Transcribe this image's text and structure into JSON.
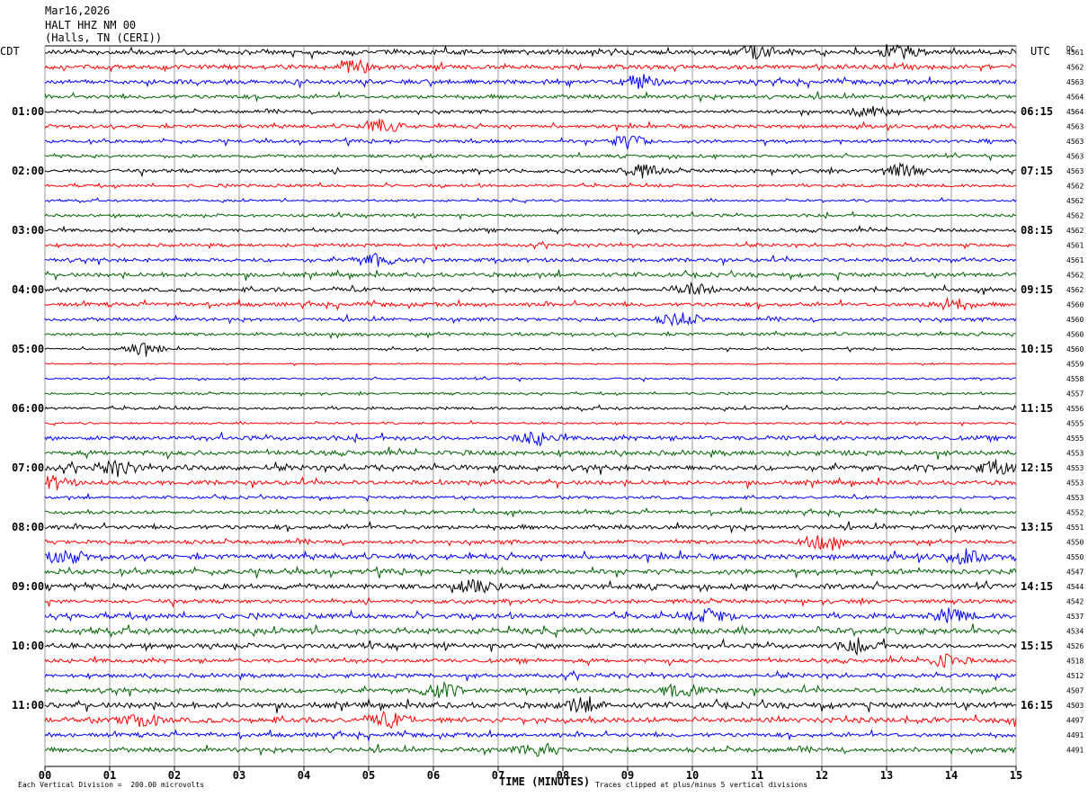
{
  "header": {
    "date": "Mar16,2026",
    "station": "HALT HHZ NM 00",
    "location": "(Halls, TN (CERI))"
  },
  "left_tz": "CDT",
  "right_tz": "UTC",
  "dc_header": "DC",
  "colors": {
    "cycle": [
      "#000000",
      "#ff0000",
      "#0000ff",
      "#006400"
    ],
    "grid": "#808080"
  },
  "chart_data": {
    "type": "line",
    "title": "HALT HHZ NM 00",
    "xlabel": "TIME (MINUTES)",
    "x_ticks": [
      "00",
      "01",
      "02",
      "03",
      "04",
      "05",
      "06",
      "07",
      "08",
      "09",
      "10",
      "11",
      "12",
      "13",
      "14",
      "15"
    ],
    "xlim": [
      0,
      15
    ],
    "rows": 48,
    "left_time_labels": [
      {
        "row": 4,
        "text": "01:00"
      },
      {
        "row": 8,
        "text": "02:00"
      },
      {
        "row": 12,
        "text": "03:00"
      },
      {
        "row": 16,
        "text": "04:00"
      },
      {
        "row": 20,
        "text": "05:00"
      },
      {
        "row": 24,
        "text": "06:00"
      },
      {
        "row": 28,
        "text": "07:00"
      },
      {
        "row": 32,
        "text": "08:00"
      },
      {
        "row": 36,
        "text": "09:00"
      },
      {
        "row": 40,
        "text": "10:00"
      },
      {
        "row": 44,
        "text": "11:00"
      }
    ],
    "right_time_labels": [
      {
        "row": 4,
        "text": "06:15"
      },
      {
        "row": 8,
        "text": "07:15"
      },
      {
        "row": 12,
        "text": "08:15"
      },
      {
        "row": 16,
        "text": "09:15"
      },
      {
        "row": 20,
        "text": "10:15"
      },
      {
        "row": 24,
        "text": "11:15"
      },
      {
        "row": 28,
        "text": "12:15"
      },
      {
        "row": 32,
        "text": "13:15"
      },
      {
        "row": 36,
        "text": "14:15"
      },
      {
        "row": 40,
        "text": "15:15"
      },
      {
        "row": 44,
        "text": "16:15"
      }
    ],
    "dc_offsets": [
      "4561",
      "4562",
      "4563",
      "4564",
      "4564",
      "4563",
      "4563",
      "4563",
      "4563",
      "4562",
      "4562",
      "4562",
      "4562",
      "4561",
      "4561",
      "4562",
      "4562",
      "4560",
      "4560",
      "4560",
      "4560",
      "4559",
      "4558",
      "4557",
      "4556",
      "4555",
      "4555",
      "4553",
      "4553",
      "4553",
      "4553",
      "4552",
      "4551",
      "4550",
      "4550",
      "4547",
      "4544",
      "4542",
      "4537",
      "4534",
      "4526",
      "4518",
      "4512",
      "4507",
      "4503",
      "4497",
      "4491",
      "4491"
    ],
    "activity": [
      2.2,
      2.0,
      2.0,
      1.8,
      1.4,
      1.6,
      1.5,
      1.4,
      1.7,
      1.4,
      1.0,
      1.3,
      1.5,
      1.4,
      1.7,
      1.9,
      1.8,
      1.8,
      1.5,
      1.4,
      0.9,
      0.6,
      0.9,
      1.0,
      1.3,
      0.9,
      2.0,
      2.2,
      2.4,
      2.0,
      1.3,
      1.6,
      2.0,
      1.8,
      2.4,
      2.3,
      2.4,
      1.8,
      2.4,
      2.6,
      2.3,
      1.9,
      1.8,
      2.1,
      2.6,
      2.4,
      1.9,
      2.0
    ],
    "bursts": [
      [
        0,
        11.0
      ],
      [
        0,
        13.2
      ],
      [
        1,
        4.8
      ],
      [
        2,
        9.2
      ],
      [
        4,
        12.7
      ],
      [
        5,
        5.2
      ],
      [
        6,
        9.0
      ],
      [
        8,
        9.2
      ],
      [
        8,
        13.2
      ],
      [
        14,
        5.1
      ],
      [
        16,
        10.0
      ],
      [
        17,
        14.0
      ],
      [
        18,
        9.8
      ],
      [
        20,
        1.5
      ],
      [
        26,
        7.6
      ],
      [
        28,
        1.1
      ],
      [
        28,
        14.7
      ],
      [
        29,
        0.1
      ],
      [
        33,
        12.0
      ],
      [
        34,
        0.3
      ],
      [
        34,
        14.2
      ],
      [
        36,
        6.7
      ],
      [
        38,
        10.3
      ],
      [
        38,
        14.0
      ],
      [
        40,
        12.6
      ],
      [
        41,
        13.9
      ],
      [
        43,
        6.1
      ],
      [
        43,
        9.8
      ],
      [
        44,
        8.3
      ],
      [
        45,
        1.5
      ],
      [
        45,
        5.3
      ],
      [
        47,
        7.6
      ]
    ]
  },
  "footer": {
    "scale_note": "Each Vertical Division =  200.00 microvolts",
    "clip_note": "Traces clipped at plus/minus 5 vertical divisions"
  }
}
